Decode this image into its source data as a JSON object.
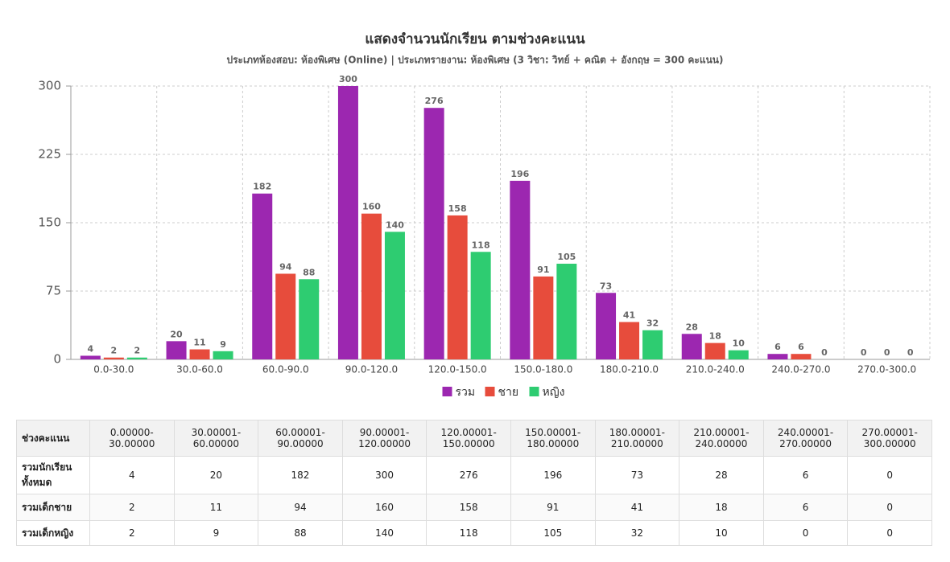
{
  "chart_data": {
    "type": "bar",
    "title": "แสดงจำนวนนักเรียน ตามช่วงคะแนน",
    "subtitle": "ประเภทห้องสอบ: ห้องพิเศษ (Online) | ประเภทรายงาน: ห้องพิเศษ (3 วิชา: วิทย์ + คณิต + อังกฤษ = 300 คะแนน)",
    "categories": [
      "0.0-30.0",
      "30.0-60.0",
      "60.0-90.0",
      "90.0-120.0",
      "120.0-150.0",
      "150.0-180.0",
      "180.0-210.0",
      "210.0-240.0",
      "240.0-270.0",
      "270.0-300.0"
    ],
    "series": [
      {
        "name": "รวม",
        "color": "#9c27b0",
        "values": [
          4,
          20,
          182,
          300,
          276,
          196,
          73,
          28,
          6,
          0
        ]
      },
      {
        "name": "ชาย",
        "color": "#e74c3c",
        "values": [
          2,
          11,
          94,
          160,
          158,
          91,
          41,
          18,
          6,
          0
        ]
      },
      {
        "name": "หญิง",
        "color": "#2ecc71",
        "values": [
          2,
          9,
          88,
          140,
          118,
          105,
          32,
          10,
          0,
          0
        ]
      }
    ],
    "ylim": [
      0,
      300
    ],
    "yticks": [
      0,
      75,
      150,
      225,
      300
    ],
    "grid": true,
    "legend": "bottom"
  },
  "table": {
    "header": [
      "ช่วงคะแนน",
      "0.00000-30.00000",
      "30.00001-60.00000",
      "60.00001-90.00000",
      "90.00001-120.00000",
      "120.00001-150.00000",
      "150.00001-180.00000",
      "180.00001-210.00000",
      "210.00001-240.00000",
      "240.00001-270.00000",
      "270.00001-300.00000"
    ],
    "rows": [
      [
        "รวมนักเรียนทั้งหมด",
        4,
        20,
        182,
        300,
        276,
        196,
        73,
        28,
        6,
        0
      ],
      [
        "รวมเด็กชาย",
        2,
        11,
        94,
        160,
        158,
        91,
        41,
        18,
        6,
        0
      ],
      [
        "รวมเด็กหญิง",
        2,
        9,
        88,
        140,
        118,
        105,
        32,
        10,
        0,
        0
      ]
    ]
  }
}
